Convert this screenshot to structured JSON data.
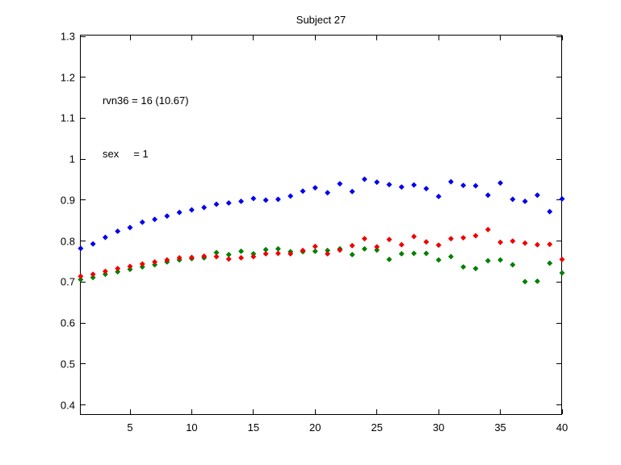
{
  "figure": {
    "title": "Subject 27",
    "annotation_lines": [
      "rvn36 = 16 (10.67)",
      "sex     = 1"
    ]
  },
  "chart_data": {
    "type": "scatter",
    "title": "Subject 27",
    "annotations": [
      "rvn36 = 16 (10.67)",
      "sex     = 1"
    ],
    "xlabel": "",
    "ylabel": "",
    "xlim": [
      1,
      40
    ],
    "ylim": [
      0.4,
      1.3
    ],
    "grid": false,
    "legend": null,
    "marker": "dot",
    "xticks": [
      5,
      10,
      15,
      20,
      25,
      30,
      35,
      40
    ],
    "xtick_labels": [
      "5",
      "10",
      "15",
      "20",
      "25",
      "30",
      "35",
      "40"
    ],
    "yticks": [
      0.4,
      0.5,
      0.6,
      0.7,
      0.8,
      0.9,
      1.0,
      1.1,
      1.2,
      1.3
    ],
    "ytick_labels": [
      "0.4",
      "0.5",
      "0.6",
      "0.7",
      "0.8",
      "0.9",
      "1",
      "1.1",
      "1.2",
      "1.3"
    ],
    "x": [
      1,
      2,
      3,
      4,
      5,
      6,
      7,
      8,
      9,
      10,
      11,
      12,
      13,
      14,
      15,
      16,
      17,
      18,
      19,
      20,
      21,
      22,
      23,
      24,
      25,
      26,
      27,
      28,
      29,
      30,
      31,
      32,
      33,
      34,
      35,
      36,
      37,
      38,
      39,
      40
    ],
    "series": [
      {
        "name": "blue-series",
        "color": "#0000EE",
        "values": [
          0.782,
          0.793,
          0.809,
          0.824,
          0.833,
          0.846,
          0.853,
          0.861,
          0.87,
          0.876,
          0.882,
          0.89,
          0.893,
          0.897,
          0.904,
          0.9,
          0.902,
          0.91,
          0.922,
          0.93,
          0.918,
          0.94,
          0.921,
          0.951,
          0.944,
          0.938,
          0.932,
          0.937,
          0.928,
          0.909,
          0.945,
          0.936,
          0.935,
          0.912,
          0.942,
          0.902,
          0.897,
          0.912,
          0.872,
          0.903
        ]
      },
      {
        "name": "green-series",
        "color": "#007F00",
        "values": [
          0.706,
          0.711,
          0.719,
          0.725,
          0.731,
          0.737,
          0.742,
          0.749,
          0.754,
          0.757,
          0.759,
          0.772,
          0.767,
          0.775,
          0.769,
          0.779,
          0.781,
          0.774,
          0.774,
          0.775,
          0.777,
          0.781,
          0.767,
          0.781,
          0.778,
          0.755,
          0.769,
          0.77,
          0.77,
          0.754,
          0.762,
          0.737,
          0.733,
          0.752,
          0.754,
          0.742,
          0.701,
          0.702,
          0.746,
          0.722
        ]
      },
      {
        "name": "red-series",
        "color": "#EE0000",
        "values": [
          0.714,
          0.719,
          0.726,
          0.733,
          0.738,
          0.744,
          0.749,
          0.754,
          0.759,
          0.76,
          0.763,
          0.762,
          0.756,
          0.759,
          0.762,
          0.769,
          0.77,
          0.769,
          0.777,
          0.787,
          0.769,
          0.778,
          0.789,
          0.806,
          0.786,
          0.804,
          0.791,
          0.811,
          0.798,
          0.79,
          0.806,
          0.808,
          0.813,
          0.828,
          0.797,
          0.8,
          0.795,
          0.791,
          0.792,
          0.755
        ]
      }
    ]
  }
}
